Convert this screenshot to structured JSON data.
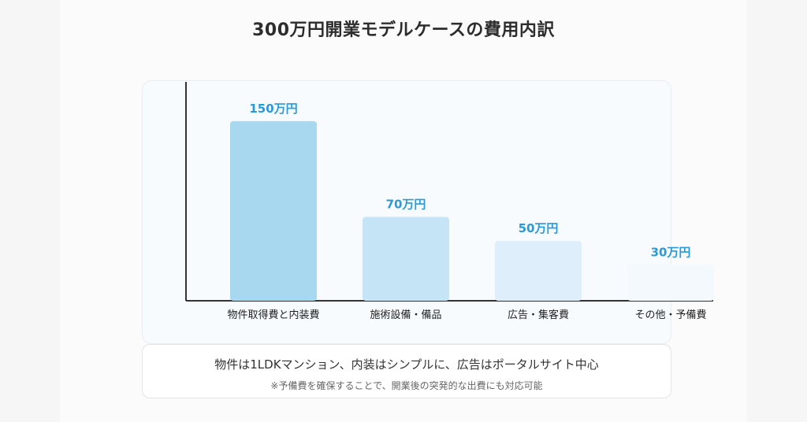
{
  "title": "300万円開業モデルケースの費用内訳",
  "chart_data": {
    "type": "bar",
    "categories": [
      "物件取得費と内装費",
      "施術設備・備品",
      "広告・集客費",
      "その他・予備費"
    ],
    "values": [
      150,
      70,
      50,
      30
    ],
    "value_labels": [
      "150万円",
      "70万円",
      "50万円",
      "30万円"
    ],
    "bar_colors": [
      "#a8d8f0",
      "#c5e4f6",
      "#deeefa",
      "#f3f9fd"
    ],
    "label_color": "#2a9ad8",
    "unit": "万円",
    "ylim": [
      0,
      170
    ],
    "grid": false
  },
  "note": {
    "main": "物件は1LDKマンション、内装はシンプルに、広告はポータルサイト中心",
    "sub": "※予備費を確保することで、開業後の突発的な出費にも対応可能"
  }
}
